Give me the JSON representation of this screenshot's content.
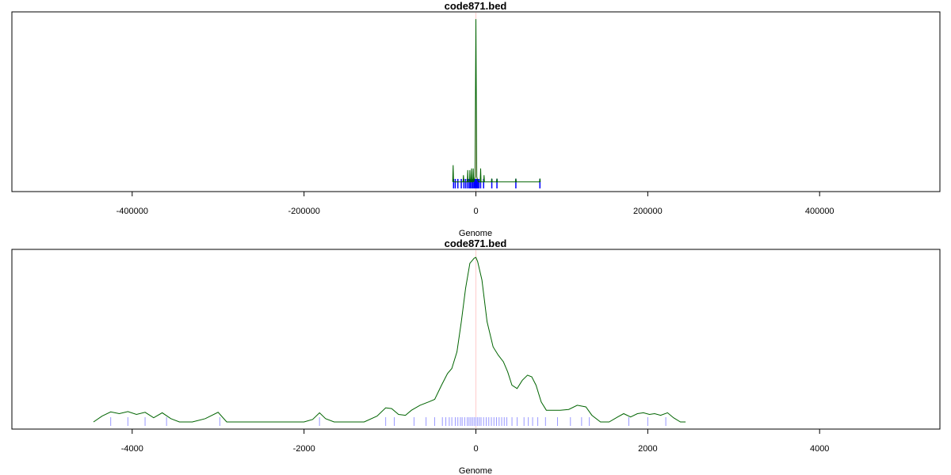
{
  "colors": {
    "density": "#006400",
    "rug": "#0000ff",
    "rug_light": "#9999ff",
    "center": "#ffcccc",
    "frame": "#000000"
  },
  "chart_data": [
    {
      "type": "line",
      "title": "code871.bed",
      "xlabel": "Genome",
      "ylabel": "",
      "xlim": [
        -540000,
        540000
      ],
      "ylim": [
        0,
        1
      ],
      "xticks": [
        -400000,
        -200000,
        0,
        200000,
        400000
      ],
      "xtick_labels": [
        "-400000",
        "-200000",
        "0",
        "200000",
        "400000"
      ],
      "grid": false,
      "series": [
        {
          "x": [
            -27000,
            -26500,
            -26000,
            -25500,
            -25000,
            -20000,
            -15000,
            -14500,
            -14000,
            -10000,
            -9500,
            -9000,
            -7500,
            -7000,
            -6500,
            -5500,
            -5000,
            -4500,
            -3500,
            -3000,
            -2500,
            -1000,
            -500,
            0,
            500,
            1000,
            2000,
            3000,
            5000,
            5500,
            6000,
            9000,
            9500,
            10000,
            18000,
            18500,
            19000,
            24000,
            24500,
            25000,
            46000,
            46500,
            47000,
            74000,
            74500,
            75000
          ],
          "y": [
            0.02,
            0.12,
            0.02,
            0.02,
            0.02,
            0.02,
            0.02,
            0.06,
            0.02,
            0.02,
            0.09,
            0.02,
            0.02,
            0.09,
            0.02,
            0.02,
            0.1,
            0.02,
            0.02,
            0.1,
            0.02,
            0.05,
            0.55,
            0.99,
            0.55,
            0.05,
            0.03,
            0.02,
            0.02,
            0.1,
            0.02,
            0.02,
            0.06,
            0.02,
            0.02,
            0.04,
            0.02,
            0.02,
            0.04,
            0.02,
            0.02,
            0.04,
            0.02,
            0.02,
            0.04,
            0.02
          ]
        }
      ],
      "rug": [
        -26000,
        -24000,
        -21000,
        -17000,
        -14000,
        -12000,
        -10000,
        -8000,
        -6500,
        -5000,
        -3500,
        -2000,
        -1000,
        -500,
        0,
        300,
        600,
        1200,
        2000,
        3500,
        5500,
        9000,
        18500,
        24500,
        46500,
        74500
      ]
    },
    {
      "type": "line",
      "title": "code871.bed",
      "xlabel": "Genome",
      "ylabel": "",
      "xlim": [
        -5400,
        5400
      ],
      "ylim": [
        0,
        1
      ],
      "xticks": [
        -4000,
        -2000,
        0,
        2000,
        4000
      ],
      "xtick_labels": [
        "-4000",
        "-2000",
        "0",
        "2000",
        "4000"
      ],
      "grid": false,
      "series": [
        {
          "x": [
            -4450,
            -4350,
            -4250,
            -4150,
            -4050,
            -3950,
            -3850,
            -3750,
            -3650,
            -3550,
            -3450,
            -3300,
            -3150,
            -3000,
            -2900,
            -2750,
            -2500,
            -2200,
            -2000,
            -1900,
            -1820,
            -1750,
            -1650,
            -1500,
            -1300,
            -1150,
            -1050,
            -980,
            -900,
            -820,
            -750,
            -650,
            -550,
            -480,
            -400,
            -330,
            -280,
            -220,
            -170,
            -120,
            -70,
            -20,
            0,
            20,
            70,
            130,
            200,
            260,
            320,
            370,
            420,
            480,
            540,
            600,
            650,
            700,
            760,
            820,
            900,
            980,
            1080,
            1180,
            1280,
            1350,
            1450,
            1550,
            1650,
            1720,
            1800,
            1880,
            1950,
            2020,
            2080,
            2150,
            2230,
            2300,
            2380,
            2440
          ],
          "y": [
            0.0,
            0.035,
            0.06,
            0.05,
            0.062,
            0.045,
            0.058,
            0.025,
            0.055,
            0.02,
            0.0,
            0.0,
            0.02,
            0.058,
            0.0,
            0.0,
            0.0,
            0.0,
            0.0,
            0.015,
            0.055,
            0.02,
            0.0,
            0.0,
            0.0,
            0.035,
            0.085,
            0.08,
            0.045,
            0.04,
            0.07,
            0.1,
            0.12,
            0.135,
            0.22,
            0.29,
            0.32,
            0.42,
            0.6,
            0.8,
            0.95,
            0.98,
            0.985,
            0.96,
            0.85,
            0.6,
            0.45,
            0.4,
            0.36,
            0.3,
            0.22,
            0.2,
            0.25,
            0.28,
            0.27,
            0.22,
            0.12,
            0.07,
            0.07,
            0.07,
            0.075,
            0.1,
            0.09,
            0.04,
            0.0,
            0.0,
            0.03,
            0.05,
            0.03,
            0.05,
            0.055,
            0.045,
            0.05,
            0.04,
            0.055,
            0.025,
            0.0,
            0.0
          ]
        }
      ],
      "rug": [
        -4250,
        -4050,
        -3850,
        -3600,
        -2980,
        -1820,
        -1050,
        -950,
        -720,
        -580,
        -480,
        -390,
        -350,
        -310,
        -280,
        -240,
        -210,
        -180,
        -160,
        -130,
        -100,
        -80,
        -60,
        -40,
        -20,
        0,
        20,
        40,
        60,
        90,
        120,
        150,
        180,
        210,
        240,
        270,
        300,
        330,
        360,
        420,
        480,
        560,
        610,
        660,
        720,
        810,
        950,
        1100,
        1230,
        1320,
        1780,
        2000,
        2210
      ]
    }
  ]
}
